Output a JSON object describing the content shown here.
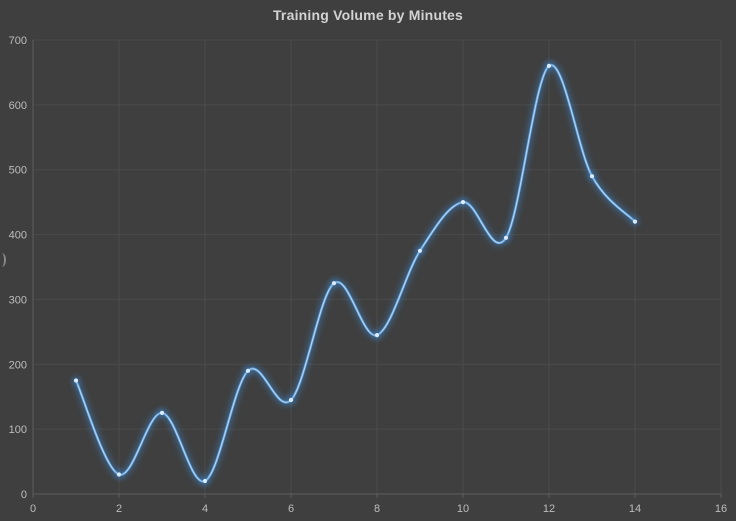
{
  "page": {
    "background": "#3f3f3f"
  },
  "chart_data": {
    "type": "line",
    "title": "Training Volume by Minutes",
    "x": [
      1,
      2,
      3,
      4,
      5,
      6,
      7,
      8,
      9,
      10,
      11,
      12,
      13,
      14
    ],
    "y": [
      175,
      30,
      125,
      20,
      190,
      145,
      325,
      245,
      375,
      450,
      395,
      660,
      490,
      420
    ],
    "xlim": [
      0,
      16
    ],
    "ylim": [
      0,
      700
    ],
    "x_ticks": [
      0,
      2,
      4,
      6,
      8,
      10,
      12,
      14,
      16
    ],
    "y_ticks": [
      0,
      100,
      200,
      300,
      400,
      500,
      600,
      700
    ],
    "xlabel": "",
    "ylabel": "",
    "grid": true,
    "legend": "none",
    "line_smooth": true,
    "marker": "dot",
    "colors": {
      "line": "#5b9bd5",
      "line_core": "#bcd8f2",
      "glow": "#3c7fc0",
      "marker": "#d9ebfc",
      "gridline": "#4b4b4b",
      "axis_line": "#5e5e5e",
      "tick_label": "#bdbdbd",
      "title": "#d3d3d3",
      "background": "#3f3f3f"
    }
  }
}
